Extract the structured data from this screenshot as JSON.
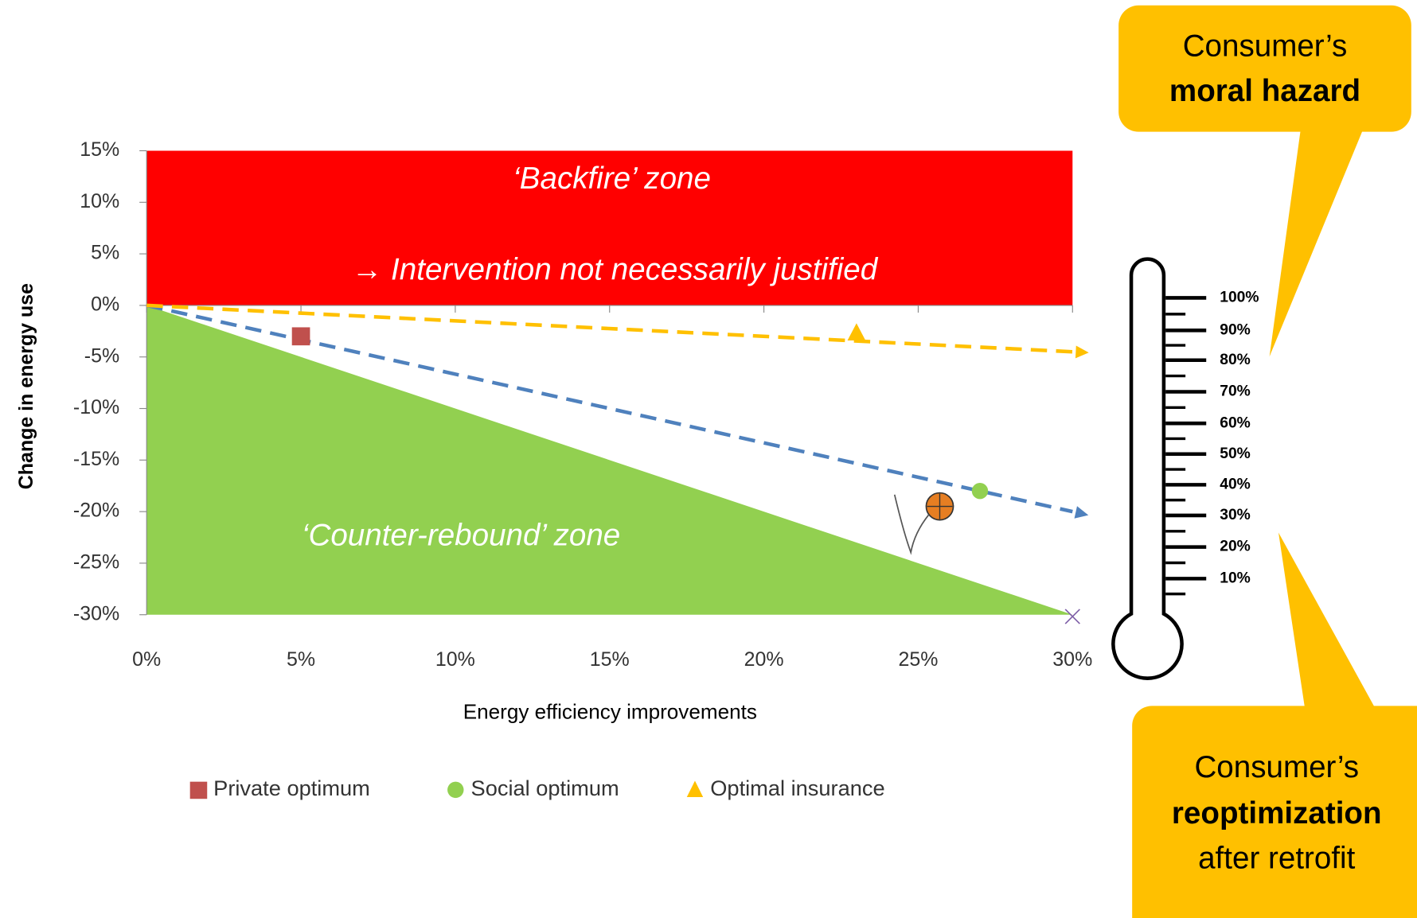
{
  "chart_data": {
    "type": "scatter",
    "x_label": "Energy efficiency improvements",
    "y_label": "Change in energy use",
    "xlim": [
      0,
      30
    ],
    "ylim": [
      -30,
      15
    ],
    "xticks": [
      {
        "value": 0,
        "label": "0%"
      },
      {
        "value": 5,
        "label": "5%"
      },
      {
        "value": 10,
        "label": "10%"
      },
      {
        "value": 15,
        "label": "15%"
      },
      {
        "value": 20,
        "label": "20%"
      },
      {
        "value": 25,
        "label": "25%"
      },
      {
        "value": 30,
        "label": "30%"
      }
    ],
    "yticks": [
      {
        "value": 15,
        "label": "15%"
      },
      {
        "value": 10,
        "label": "10%"
      },
      {
        "value": 5,
        "label": "5%"
      },
      {
        "value": 0,
        "label": "0%"
      },
      {
        "value": -5,
        "label": "-5%"
      },
      {
        "value": -10,
        "label": "-10%"
      },
      {
        "value": -15,
        "label": "-15%"
      },
      {
        "value": -20,
        "label": "-20%"
      },
      {
        "value": -25,
        "label": "-25%"
      },
      {
        "value": -30,
        "label": "-30%"
      }
    ],
    "series": [
      {
        "name": "Private optimum",
        "color": "#c0504d",
        "marker": "square",
        "x": [
          5
        ],
        "values": [
          -3
        ]
      },
      {
        "name": "Social optimum",
        "color": "#92d050",
        "marker": "circle",
        "x": [
          27
        ],
        "values": [
          -18
        ]
      },
      {
        "name": "Optimal insurance",
        "color": "#ffc000",
        "marker": "triangle",
        "x": [
          23
        ],
        "values": [
          -2.7
        ]
      }
    ],
    "trend_lines": [
      {
        "color": "#4f81bd",
        "x": [
          0,
          30
        ],
        "y": [
          0,
          -20
        ]
      },
      {
        "color": "#ffc000",
        "x": [
          0,
          30
        ],
        "y": [
          0,
          -4.5
        ]
      }
    ],
    "zones": [
      {
        "labels": [
          "‘Backfire’ zone",
          "→ Intervention not necessarily justified"
        ],
        "color": "#ff0000",
        "x": [
          0,
          30,
          30,
          0
        ],
        "y": [
          15,
          15,
          0,
          0
        ]
      },
      {
        "labels": [
          "‘Counter-rebound’ zone"
        ],
        "color": "#92d050",
        "x": [
          0,
          30,
          0
        ],
        "y": [
          0,
          -30,
          -30
        ]
      }
    ],
    "thermometer": {
      "labels": [
        "100%",
        "90%",
        "80%",
        "70%",
        "60%",
        "50%",
        "40%",
        "30%",
        "20%",
        "10%"
      ]
    },
    "callouts": [
      {
        "lines": [
          "Consumer’s",
          "moral hazard"
        ]
      },
      {
        "lines": [
          "Consumer’s",
          "reoptimization",
          "after retrofit"
        ]
      }
    ]
  }
}
